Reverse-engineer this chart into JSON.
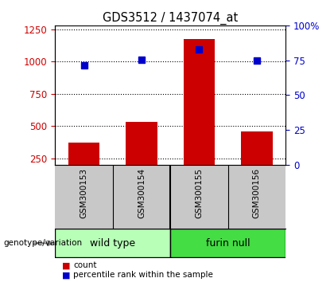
{
  "title": "GDS3512 / 1437074_at",
  "samples": [
    "GSM300153",
    "GSM300154",
    "GSM300155",
    "GSM300156"
  ],
  "counts": [
    375,
    535,
    1175,
    462
  ],
  "percentiles_pct": [
    71.5,
    75.5,
    83,
    75
  ],
  "ylim_left": [
    200,
    1280
  ],
  "ylim_right": [
    0,
    100
  ],
  "yticks_left": [
    250,
    500,
    750,
    1000,
    1250
  ],
  "yticks_right": [
    0,
    25,
    50,
    75,
    100
  ],
  "bar_color": "#cc0000",
  "dot_color": "#0000cc",
  "group_labels": [
    "wild type",
    "furin null"
  ],
  "group_colors_light": "#b8ffb8",
  "group_colors_dark": "#44dd44",
  "group_ranges": [
    [
      0,
      2
    ],
    [
      2,
      4
    ]
  ],
  "label_count": "count",
  "label_percentile": "percentile rank within the sample",
  "genotype_label": "genotype/variation",
  "background_plot": "#ffffff",
  "background_xlabel": "#c8c8c8"
}
